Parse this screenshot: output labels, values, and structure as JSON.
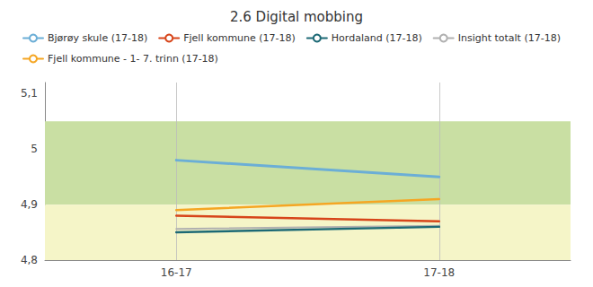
{
  "chart_data": {
    "type": "line",
    "title": "2.6 Digital mobbing",
    "categories": [
      "16-17",
      "17-18"
    ],
    "series": [
      {
        "name": "Bjørøy skule (17-18)",
        "color": "#6baed6",
        "values": [
          4.98,
          4.95
        ]
      },
      {
        "name": "Fjell kommune (17-18)",
        "color": "#d7451a",
        "values": [
          4.88,
          4.87
        ]
      },
      {
        "name": "Hordaland (17-18)",
        "color": "#1c6975",
        "values": [
          4.85,
          4.86
        ]
      },
      {
        "name": "Insight totalt (17-18)",
        "color": "#b0b0b0",
        "values": [
          4.856,
          4.862
        ]
      },
      {
        "name": "Fjell kommune - 1- 7. trinn (17-18)",
        "color": "#f5a623",
        "values": [
          4.89,
          4.91
        ]
      }
    ],
    "ylim": [
      4.8,
      5.12
    ],
    "yticks": [
      {
        "value": 4.8,
        "label": "4,8"
      },
      {
        "value": 4.9,
        "label": "4,9"
      },
      5,
      {
        "value": 5.1,
        "label": "5,1"
      }
    ],
    "bands": [
      {
        "min": 4.9,
        "max": 5.05,
        "color": "#c9dfa3"
      },
      {
        "min": 4.8,
        "max": 4.9,
        "color": "#f5f5c8"
      }
    ],
    "grid": "x"
  }
}
